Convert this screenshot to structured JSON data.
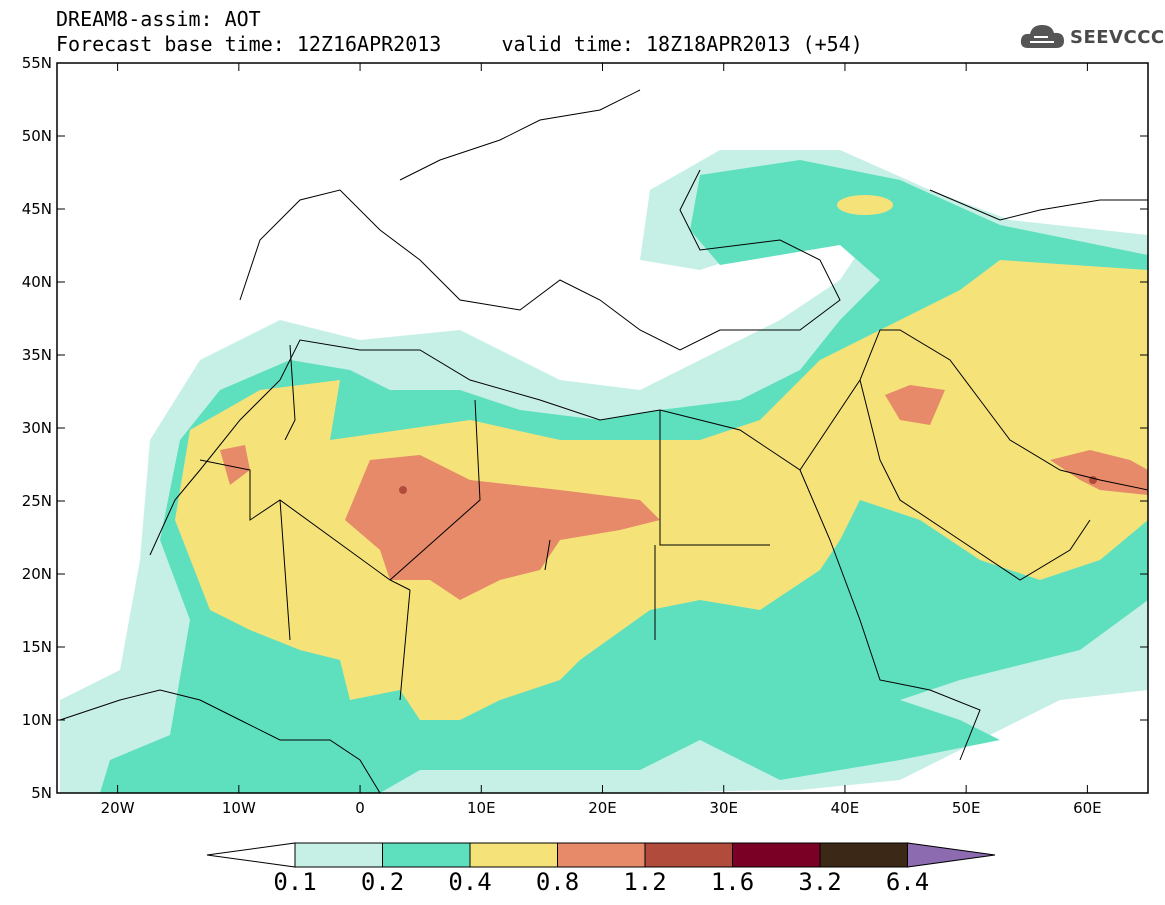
{
  "header": {
    "title_line1": "DREAM8-assim: AOT",
    "title_line2": "Forecast base time: 12Z16APR2013     valid time: 18Z18APR2013 (+54)"
  },
  "logo": {
    "text": "SEEVCCC",
    "icon": "cloud-icon"
  },
  "map": {
    "lat_labels": [
      "55N",
      "50N",
      "45N",
      "40N",
      "35N",
      "30N",
      "25N",
      "20N",
      "15N",
      "10N",
      "5N"
    ],
    "lat_values": [
      55,
      50,
      45,
      40,
      35,
      30,
      25,
      20,
      15,
      10,
      5
    ],
    "lon_labels": [
      "20W",
      "10W",
      "0",
      "10E",
      "20E",
      "30E",
      "40E",
      "50E",
      "60E"
    ],
    "lon_values": [
      -20,
      -10,
      0,
      10,
      20,
      30,
      40,
      50,
      60
    ],
    "lon_range": [
      -25,
      65
    ],
    "lat_range": [
      5,
      55
    ]
  },
  "colorbar": {
    "labels": [
      "0.1",
      "0.2",
      "0.4",
      "0.8",
      "1.2",
      "1.6",
      "3.2",
      "6.4"
    ],
    "colors": [
      "#ffffff",
      "#c6f0e6",
      "#5ee0bf",
      "#f5e37a",
      "#e68a6a",
      "#b14c3d",
      "#7a0026",
      "#3b2817",
      "#8c6bb1"
    ]
  },
  "colors": {
    "level_01": "#c6f0e6",
    "level_02": "#5ee0bf",
    "level_04": "#f5e37a",
    "level_08": "#e68a6a",
    "level_12": "#b14c3d",
    "level_16": "#7a0026"
  }
}
